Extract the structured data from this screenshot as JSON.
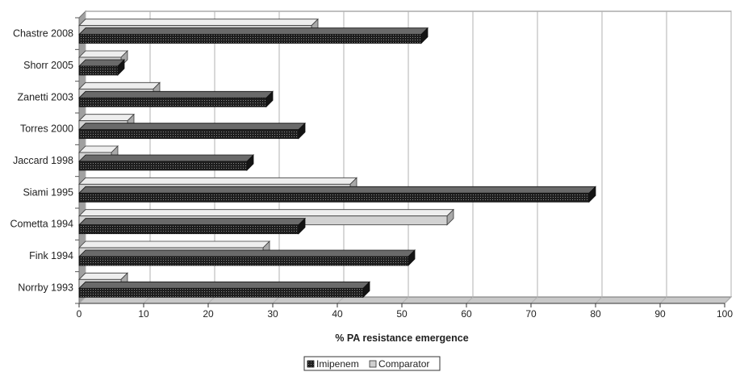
{
  "chart_data": {
    "type": "bar",
    "orientation": "horizontal",
    "categories": [
      "Chastre 2008",
      "Shorr 2005",
      "Zanetti 2003",
      "Torres 2000",
      "Jaccard 1998",
      "Siami 1995",
      "Cometta 1994",
      "Fink 1994",
      "Norrby 1993"
    ],
    "series": [
      {
        "name": "Imipenem",
        "values": [
          53,
          6,
          29,
          34,
          26,
          79,
          34,
          51,
          44
        ],
        "color": "#2b2b2b",
        "pattern": "dotted-dark"
      },
      {
        "name": "Comparator",
        "values": [
          36,
          6.5,
          11.5,
          7.5,
          5,
          42,
          57,
          28.5,
          6.5
        ],
        "color": "#cfcfcf",
        "pattern": "solid-light"
      }
    ],
    "xlabel": "% PA resistance emergence",
    "xlim": [
      0,
      100
    ],
    "xticks": [
      0,
      10,
      20,
      30,
      40,
      50,
      60,
      70,
      80,
      90,
      100
    ],
    "legend_position": "bottom-center",
    "style": "3d"
  }
}
